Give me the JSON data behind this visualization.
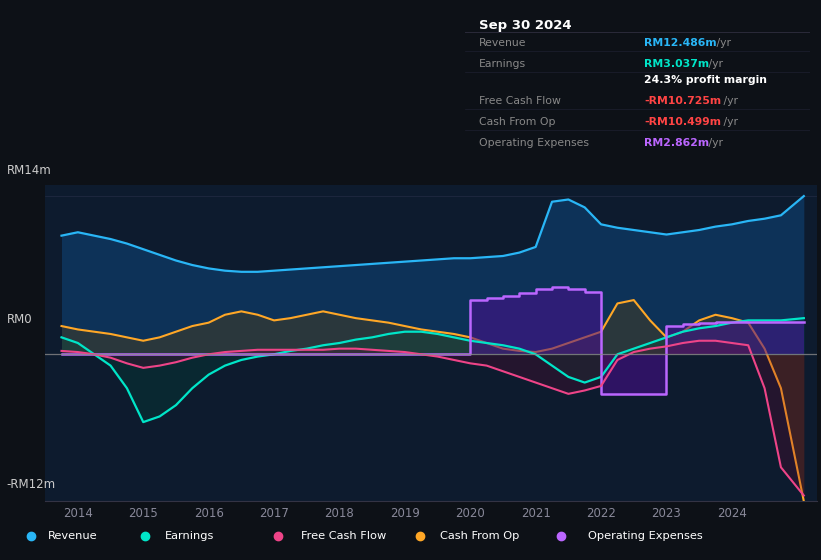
{
  "bg_color": "#0d1117",
  "plot_bg_color": "#0d1b2e",
  "title": "Sep 30 2024",
  "ylabel_top": "RM14m",
  "ylabel_zero": "RM0",
  "ylabel_bottom": "-RM12m",
  "ylim": [
    -13,
    15
  ],
  "xlim": [
    2013.5,
    2025.3
  ],
  "xticks": [
    2014,
    2015,
    2016,
    2017,
    2018,
    2019,
    2020,
    2021,
    2022,
    2023,
    2024
  ],
  "legend": [
    {
      "label": "Revenue",
      "color": "#29b6f6"
    },
    {
      "label": "Earnings",
      "color": "#00e5c8"
    },
    {
      "label": "Free Cash Flow",
      "color": "#ee4488"
    },
    {
      "label": "Cash From Op",
      "color": "#ffa726"
    },
    {
      "label": "Operating Expenses",
      "color": "#bb66ff"
    }
  ],
  "info_rows": [
    {
      "label": "Revenue",
      "value": "RM12.486m /yr",
      "label_color": "#888888",
      "value_color": "#29b6f6"
    },
    {
      "label": "Earnings",
      "value": "RM3.037m /yr",
      "label_color": "#888888",
      "value_color": "#00e5c8"
    },
    {
      "label": "",
      "value": "24.3% profit margin",
      "label_color": "#888888",
      "value_color": "#ffffff"
    },
    {
      "label": "Free Cash Flow",
      "value": "-RM10.725m /yr",
      "label_color": "#888888",
      "value_color": "#ff4444"
    },
    {
      "label": "Cash From Op",
      "value": "-RM10.499m /yr",
      "label_color": "#888888",
      "value_color": "#ff4444"
    },
    {
      "label": "Operating Expenses",
      "value": "RM2.862m /yr",
      "label_color": "#888888",
      "value_color": "#bb66ff"
    }
  ],
  "series": {
    "x": [
      2013.75,
      2014.0,
      2014.25,
      2014.5,
      2014.75,
      2015.0,
      2015.25,
      2015.5,
      2015.75,
      2016.0,
      2016.25,
      2016.5,
      2016.75,
      2017.0,
      2017.25,
      2017.5,
      2017.75,
      2018.0,
      2018.25,
      2018.5,
      2018.75,
      2019.0,
      2019.25,
      2019.5,
      2019.75,
      2020.0,
      2020.25,
      2020.5,
      2020.75,
      2021.0,
      2021.25,
      2021.5,
      2021.75,
      2022.0,
      2022.25,
      2022.5,
      2022.75,
      2023.0,
      2023.25,
      2023.5,
      2023.75,
      2024.0,
      2024.25,
      2024.5,
      2024.75,
      2025.1
    ],
    "revenue": [
      10.5,
      10.8,
      10.5,
      10.2,
      9.8,
      9.3,
      8.8,
      8.3,
      7.9,
      7.6,
      7.4,
      7.3,
      7.3,
      7.4,
      7.5,
      7.6,
      7.7,
      7.8,
      7.9,
      8.0,
      8.1,
      8.2,
      8.3,
      8.4,
      8.5,
      8.5,
      8.6,
      8.7,
      9.0,
      9.5,
      13.5,
      13.7,
      13.0,
      11.5,
      11.2,
      11.0,
      10.8,
      10.6,
      10.8,
      11.0,
      11.3,
      11.5,
      11.8,
      12.0,
      12.3,
      14.0
    ],
    "earnings": [
      1.5,
      1.0,
      0.0,
      -1.0,
      -3.0,
      -6.0,
      -5.5,
      -4.5,
      -3.0,
      -1.8,
      -1.0,
      -0.5,
      -0.2,
      0.0,
      0.3,
      0.5,
      0.8,
      1.0,
      1.3,
      1.5,
      1.8,
      2.0,
      2.0,
      1.8,
      1.5,
      1.2,
      1.0,
      0.8,
      0.5,
      0.0,
      -1.0,
      -2.0,
      -2.5,
      -2.0,
      0.0,
      0.5,
      1.0,
      1.5,
      2.0,
      2.3,
      2.5,
      2.8,
      3.0,
      3.0,
      3.0,
      3.2
    ],
    "free_cash_flow": [
      0.3,
      0.2,
      0.0,
      -0.3,
      -0.8,
      -1.2,
      -1.0,
      -0.7,
      -0.3,
      0.0,
      0.2,
      0.3,
      0.4,
      0.4,
      0.4,
      0.4,
      0.4,
      0.5,
      0.5,
      0.4,
      0.3,
      0.2,
      0.0,
      -0.2,
      -0.5,
      -0.8,
      -1.0,
      -1.5,
      -2.0,
      -2.5,
      -3.0,
      -3.5,
      -3.2,
      -2.8,
      -0.5,
      0.2,
      0.5,
      0.7,
      1.0,
      1.2,
      1.2,
      1.0,
      0.8,
      -3.0,
      -10.0,
      -12.5
    ],
    "cash_from_op": [
      2.5,
      2.2,
      2.0,
      1.8,
      1.5,
      1.2,
      1.5,
      2.0,
      2.5,
      2.8,
      3.5,
      3.8,
      3.5,
      3.0,
      3.2,
      3.5,
      3.8,
      3.5,
      3.2,
      3.0,
      2.8,
      2.5,
      2.2,
      2.0,
      1.8,
      1.5,
      1.0,
      0.5,
      0.3,
      0.2,
      0.5,
      1.0,
      1.5,
      2.0,
      4.5,
      4.8,
      3.0,
      1.5,
      2.0,
      3.0,
      3.5,
      3.2,
      2.8,
      0.5,
      -3.0,
      -13.0
    ],
    "operating_expenses": [
      0.0,
      0.0,
      0.0,
      0.0,
      0.0,
      0.0,
      0.0,
      0.0,
      0.0,
      0.0,
      0.0,
      0.0,
      0.0,
      0.0,
      0.0,
      0.0,
      0.0,
      0.0,
      0.0,
      0.0,
      0.0,
      0.0,
      0.0,
      0.0,
      0.0,
      4.8,
      5.0,
      5.2,
      5.4,
      5.8,
      6.0,
      5.8,
      5.5,
      -3.5,
      -3.5,
      -3.5,
      -3.5,
      2.5,
      2.7,
      2.8,
      2.9,
      2.9,
      2.862,
      2.862,
      2.862,
      2.862
    ]
  }
}
